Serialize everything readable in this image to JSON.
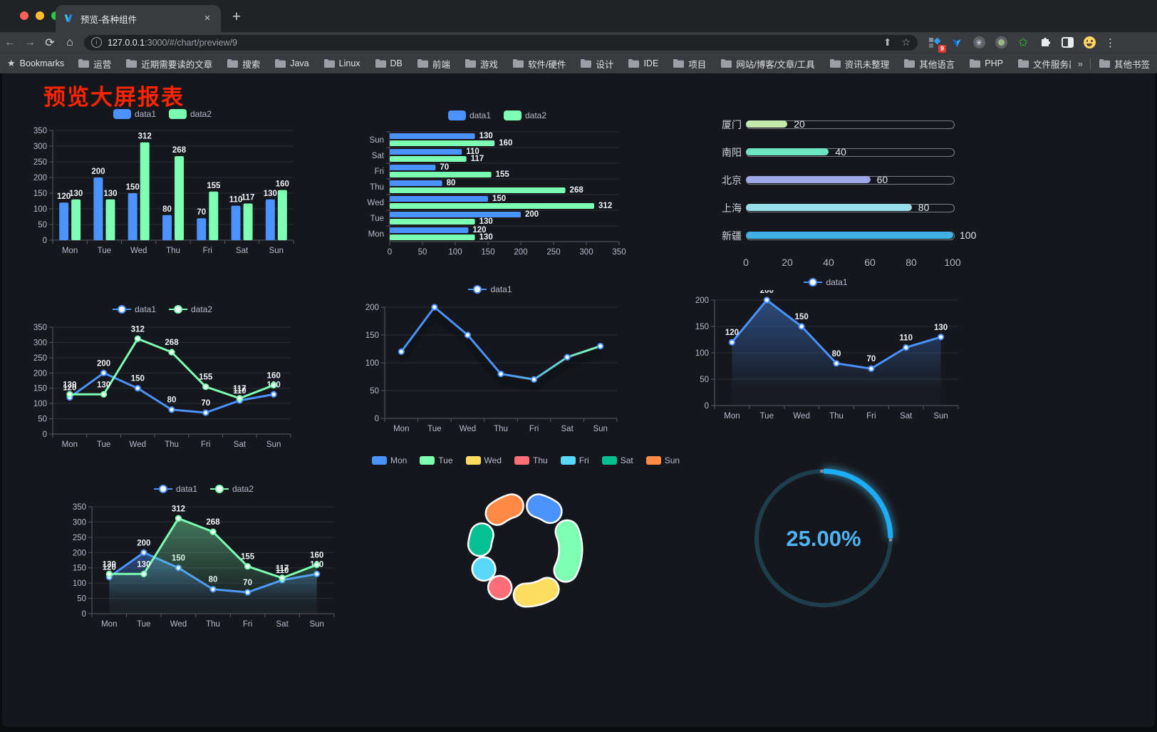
{
  "browser": {
    "tab_title": "预览-各种组件",
    "close_x": "×",
    "new_tab_plus": "+",
    "back_arrow": "←",
    "forward_arrow": "→",
    "reload_icon": "⟳",
    "home_icon": "⌂",
    "info_icon": "i",
    "url_host": "127.0.0.1",
    "url_rest": ":3000/#/chart/preview/9",
    "share_icon": "⬆",
    "star_icon": "☆",
    "extension_badge": "9",
    "menu_dots": "⋮",
    "bookmarks_star": "★",
    "bookmarks_label": "Bookmarks",
    "bookmark_folders": [
      "运营",
      "近期需要读的文章",
      "搜索",
      "Java",
      "Linux",
      "DB",
      "前端",
      "游戏",
      "软件/硬件",
      "设计",
      "IDE",
      "项目",
      "网站/博客/文章/工具",
      "资讯未整理",
      "其他语言",
      "PHP",
      "文件服务器"
    ],
    "overflow_chevron": "»",
    "other_bookmarks": "其他书签"
  },
  "page": {
    "title": "预览大屏报表"
  },
  "chart_data": [
    {
      "type": "bar",
      "categories": [
        "Mon",
        "Tue",
        "Wed",
        "Thu",
        "Fri",
        "Sat",
        "Sun"
      ],
      "series": [
        {
          "name": "data1",
          "color": "#4992ff",
          "values": [
            120,
            200,
            150,
            80,
            70,
            110,
            130
          ]
        },
        {
          "name": "data2",
          "color": "#7cffb2",
          "values": [
            130,
            130,
            312,
            268,
            155,
            117,
            160
          ]
        }
      ],
      "ylim": [
        0,
        350
      ],
      "ytick_step": 50,
      "labels": true,
      "legend_position": "top"
    },
    {
      "type": "hbar",
      "categories": [
        "Mon",
        "Tue",
        "Wed",
        "Thu",
        "Fri",
        "Sat",
        "Sun"
      ],
      "display_top_to_bottom": [
        "Sun",
        "Sat",
        "Fri",
        "Thu",
        "Wed",
        "Tue",
        "Mon"
      ],
      "series": [
        {
          "name": "data1",
          "color": "#4992ff",
          "values": [
            120,
            200,
            150,
            80,
            70,
            110,
            130
          ]
        },
        {
          "name": "data2",
          "color": "#7cffb2",
          "values": [
            130,
            130,
            312,
            268,
            155,
            117,
            160
          ]
        }
      ],
      "xlim": [
        0,
        350
      ],
      "xtick_step": 50,
      "labels": true,
      "legend_position": "top"
    },
    {
      "type": "progress",
      "max": 100,
      "xticks": [
        0,
        20,
        40,
        60,
        80,
        100
      ],
      "rows": [
        {
          "label": "厦门",
          "value": 20,
          "color": "#c4ebad"
        },
        {
          "label": "南阳",
          "value": 40,
          "color": "#6be6c1"
        },
        {
          "label": "北京",
          "value": 60,
          "color": "#a0a7e6"
        },
        {
          "label": "上海",
          "value": 80,
          "color": "#96dee8"
        },
        {
          "label": "新疆",
          "value": 100,
          "color": "#3fb1e3"
        }
      ]
    },
    {
      "type": "line",
      "categories": [
        "Mon",
        "Tue",
        "Wed",
        "Thu",
        "Fri",
        "Sat",
        "Sun"
      ],
      "series": [
        {
          "name": "data1",
          "color": "#4992ff",
          "values": [
            120,
            200,
            150,
            80,
            70,
            110,
            130
          ]
        },
        {
          "name": "data2",
          "color": "#7cffb2",
          "values": [
            130,
            130,
            312,
            268,
            155,
            117,
            160
          ]
        }
      ],
      "ylim": [
        0,
        350
      ],
      "ytick_step": 50,
      "labels": true,
      "markers": true
    },
    {
      "type": "line",
      "categories": [
        "Mon",
        "Tue",
        "Wed",
        "Thu",
        "Fri",
        "Sat",
        "Sun"
      ],
      "series": [
        {
          "name": "data1",
          "color": "#4992ff",
          "gradient": [
            "#4992ff",
            "#7cffb2"
          ],
          "values": [
            120,
            200,
            150,
            80,
            70,
            110,
            130
          ]
        }
      ],
      "ylim": [
        0,
        200
      ],
      "ytick_step": 50,
      "labels": false,
      "markers": true,
      "shadow": true
    },
    {
      "type": "line",
      "categories": [
        "Mon",
        "Tue",
        "Wed",
        "Thu",
        "Fri",
        "Sat",
        "Sun"
      ],
      "series": [
        {
          "name": "data1",
          "color": "#4992ff",
          "area": true,
          "values": [
            120,
            200,
            150,
            80,
            70,
            110,
            130
          ]
        }
      ],
      "ylim": [
        0,
        200
      ],
      "ytick_step": 50,
      "labels": true,
      "markers": true
    },
    {
      "type": "line",
      "categories": [
        "Mon",
        "Tue",
        "Wed",
        "Thu",
        "Fri",
        "Sat",
        "Sun"
      ],
      "series": [
        {
          "name": "data1",
          "color": "#4992ff",
          "area": true,
          "values": [
            120,
            200,
            150,
            80,
            70,
            110,
            130
          ]
        },
        {
          "name": "data2",
          "color": "#7cffb2",
          "area": true,
          "values": [
            130,
            130,
            312,
            268,
            155,
            117,
            160
          ]
        }
      ],
      "ylim": [
        0,
        350
      ],
      "ytick_step": 50,
      "labels": true,
      "markers": true
    },
    {
      "type": "donut",
      "slices": [
        {
          "label": "Mon",
          "value": 120,
          "color": "#4992ff"
        },
        {
          "label": "Tue",
          "value": 200,
          "color": "#7cffb2"
        },
        {
          "label": "Wed",
          "value": 150,
          "color": "#fddd60"
        },
        {
          "label": "Thu",
          "value": 80,
          "color": "#ff6e76"
        },
        {
          "label": "Fri",
          "value": 70,
          "color": "#58d9f9"
        },
        {
          "label": "Sat",
          "value": 110,
          "color": "#05c091"
        },
        {
          "label": "Sun",
          "value": 130,
          "color": "#ff8a45"
        }
      ]
    },
    {
      "type": "gauge",
      "value": 25,
      "display": "25.00%",
      "color": "#1badf5",
      "track_color": "#1d3e4c",
      "text_color": "#4db3f2"
    }
  ]
}
